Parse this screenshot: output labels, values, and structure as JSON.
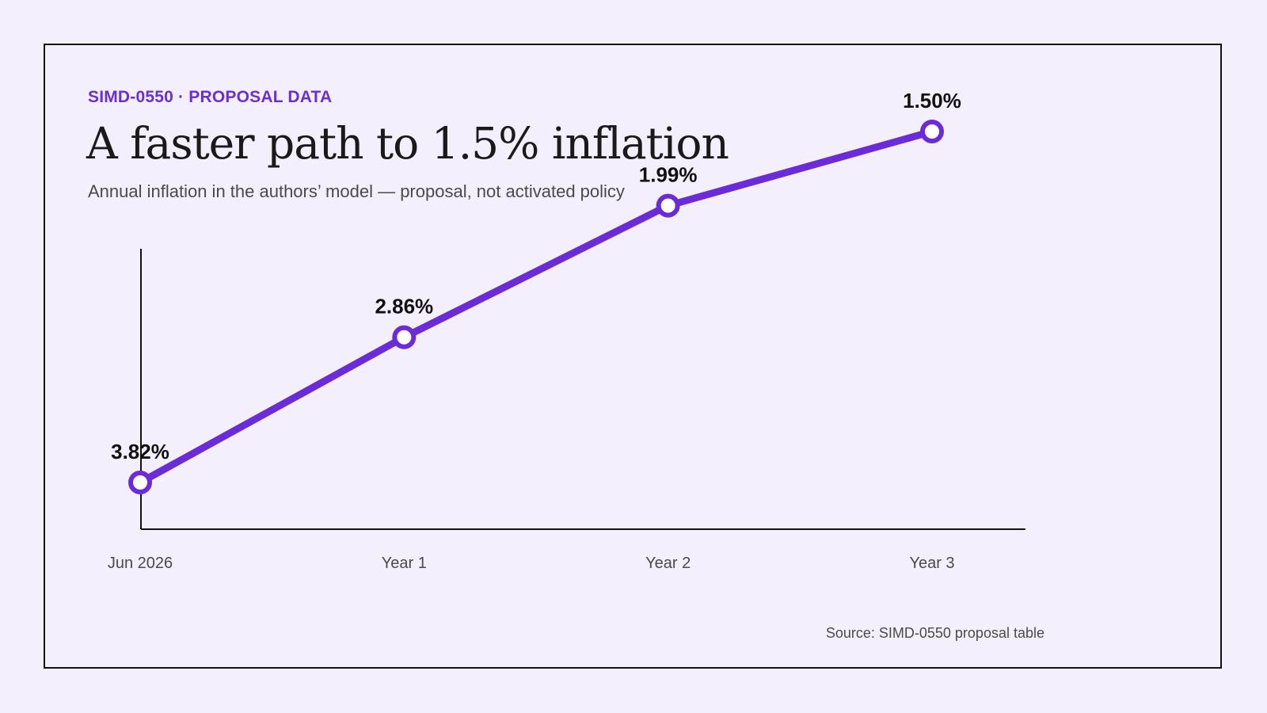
{
  "header": {
    "eyebrow": "SIMD-0550 · PROPOSAL DATA",
    "title": "A faster path to 1.5% inflation",
    "subtitle": "Annual inflation in the authors’ model — proposal, not activated policy"
  },
  "footer": {
    "source": "Source: SIMD-0550 proposal table"
  },
  "colors": {
    "accent": "#6b2fd1",
    "line": "#6c2bd9",
    "background": "#f4effd",
    "axis": "#111111"
  },
  "chart_data": {
    "type": "line",
    "title": "A faster path to 1.5% inflation",
    "subtitle": "Annual inflation in the authors’ model — proposal, not activated policy",
    "categories": [
      "Jun 2026",
      "Year 1",
      "Year 2",
      "Year 3"
    ],
    "values": [
      3.82,
      2.86,
      1.99,
      1.5
    ],
    "data_labels": [
      "3.82%",
      "2.86%",
      "1.99%",
      "1.50%"
    ],
    "xlabel": "",
    "ylabel": "",
    "ylim": [
      1.5,
      3.82
    ],
    "grid": false,
    "legend": "none"
  }
}
